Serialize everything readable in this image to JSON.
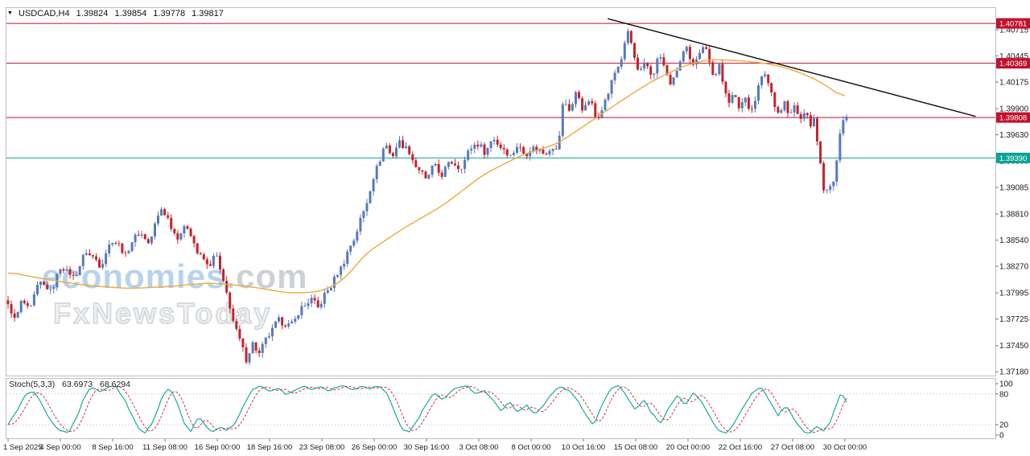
{
  "window": {
    "symbol_info": {
      "symbol": "USDCAD,H4",
      "open": "1.39824",
      "high": "1.39854",
      "low": "1.39778",
      "close": "1.39817"
    }
  },
  "icons": {
    "triangle_marker": "▼"
  },
  "watermark": {
    "brand_blue": "economies",
    "brand_gray": ".com",
    "tagline": "FxNewsToday"
  },
  "colors": {
    "candle_up": "#5579bd",
    "candle_down": "#c2242e",
    "ma": "#efa83a",
    "trend": "#111111",
    "level_red": "#c40f2e",
    "level_teal": "#0aa396",
    "stoch_k": "#18ab9e",
    "stoch_d": "#cc3344",
    "axis_text": "#1a1a1a",
    "border": "#b9bec4"
  },
  "chart_data": {
    "type": "candlestick",
    "symbol": "USDCAD",
    "timeframe": "H4",
    "ylim": [
      1.3714,
      1.4094
    ],
    "price_axis_labels": [
      "1.40715",
      "1.40445",
      "1.40175",
      "1.39900",
      "1.39630",
      "1.39360",
      "1.39085",
      "1.38810",
      "1.38540",
      "1.38270",
      "1.37995",
      "1.37725",
      "1.37450",
      "1.37180"
    ],
    "date_axis_labels": [
      "1 Sep 2025",
      "4 Sep 00:00",
      "8 Sep 16:00",
      "11 Sep 08:00",
      "16 Sep 00:00",
      "18 Sep 16:00",
      "23 Sep 08:00",
      "26 Sep 00:00",
      "30 Sep 16:00",
      "3 Oct 08:00",
      "8 Oct 00:00",
      "10 Oct 16:00",
      "15 Oct 08:00",
      "20 Oct 00:00",
      "22 Oct 16:00",
      "27 Oct 08:00",
      "30 Oct 00:00"
    ],
    "levels": [
      {
        "price": 1.40781,
        "label": "1.40781",
        "color": "#c40f2e"
      },
      {
        "price": 1.40369,
        "label": "1.40369",
        "color": "#c40f2e"
      },
      {
        "price": 1.39808,
        "label": "1.39808",
        "color": "#c40f2e"
      },
      {
        "price": 1.3939,
        "label": "1.39390",
        "color": "#0aa396"
      }
    ],
    "trendline": {
      "points": [
        {
          "x": 0.608,
          "price": 1.4083
        },
        {
          "x": 0.98,
          "price": 1.3982
        }
      ]
    },
    "candles": {
      "count": 258,
      "last_close": 1.39817,
      "close_path": [
        [
          0.0,
          1.3786
        ],
        [
          0.008,
          1.3772
        ],
        [
          0.016,
          1.379
        ],
        [
          0.026,
          1.3782
        ],
        [
          0.038,
          1.3812
        ],
        [
          0.05,
          1.38
        ],
        [
          0.064,
          1.3828
        ],
        [
          0.078,
          1.3815
        ],
        [
          0.094,
          1.3843
        ],
        [
          0.11,
          1.3828
        ],
        [
          0.125,
          1.3856
        ],
        [
          0.14,
          1.3839
        ],
        [
          0.155,
          1.3863
        ],
        [
          0.168,
          1.3851
        ],
        [
          0.183,
          1.3888
        ],
        [
          0.193,
          1.3871
        ],
        [
          0.203,
          1.3856
        ],
        [
          0.213,
          1.3871
        ],
        [
          0.225,
          1.3843
        ],
        [
          0.238,
          1.3827
        ],
        [
          0.248,
          1.3839
        ],
        [
          0.258,
          1.3807
        ],
        [
          0.268,
          1.3773
        ],
        [
          0.276,
          1.375
        ],
        [
          0.284,
          1.3732
        ],
        [
          0.292,
          1.3746
        ],
        [
          0.3,
          1.3737
        ],
        [
          0.312,
          1.3758
        ],
        [
          0.324,
          1.3772
        ],
        [
          0.336,
          1.3764
        ],
        [
          0.348,
          1.3781
        ],
        [
          0.36,
          1.3793
        ],
        [
          0.37,
          1.3785
        ],
        [
          0.382,
          1.3803
        ],
        [
          0.393,
          1.3819
        ],
        [
          0.404,
          1.3839
        ],
        [
          0.414,
          1.3859
        ],
        [
          0.424,
          1.3883
        ],
        [
          0.432,
          1.3907
        ],
        [
          0.441,
          1.3933
        ],
        [
          0.45,
          1.3953
        ],
        [
          0.458,
          1.3941
        ],
        [
          0.468,
          1.3957
        ],
        [
          0.478,
          1.3945
        ],
        [
          0.488,
          1.3929
        ],
        [
          0.498,
          1.3917
        ],
        [
          0.508,
          1.3931
        ],
        [
          0.518,
          1.3921
        ],
        [
          0.528,
          1.3937
        ],
        [
          0.538,
          1.3927
        ],
        [
          0.548,
          1.3943
        ],
        [
          0.558,
          1.3956
        ],
        [
          0.568,
          1.3945
        ],
        [
          0.578,
          1.3959
        ],
        [
          0.588,
          1.3951
        ],
        [
          0.598,
          1.3941
        ],
        [
          0.608,
          1.3951
        ],
        [
          0.618,
          1.3943
        ],
        [
          0.628,
          1.3951
        ],
        [
          0.638,
          1.3943
        ],
        [
          0.648,
          1.3951
        ],
        [
          0.655,
          1.3945
        ],
        [
          0.662,
          1.3997
        ],
        [
          0.67,
          1.3989
        ],
        [
          0.678,
          1.4007
        ],
        [
          0.686,
          1.3989
        ],
        [
          0.694,
          1.3999
        ],
        [
          0.702,
          1.3979
        ],
        [
          0.71,
          1.3993
        ],
        [
          0.718,
          1.4013
        ],
        [
          0.726,
          1.4031
        ],
        [
          0.734,
          1.4049
        ],
        [
          0.74,
          1.4072
        ],
        [
          0.746,
          1.4047
        ],
        [
          0.752,
          1.4023
        ],
        [
          0.76,
          1.4039
        ],
        [
          0.768,
          1.4021
        ],
        [
          0.776,
          1.4047
        ],
        [
          0.784,
          1.4029
        ],
        [
          0.792,
          1.4013
        ],
        [
          0.8,
          1.4037
        ],
        [
          0.808,
          1.4053
        ],
        [
          0.816,
          1.4033
        ],
        [
          0.824,
          1.4047
        ],
        [
          0.83,
          1.4059
        ],
        [
          0.836,
          1.4041
        ],
        [
          0.842,
          1.4021
        ],
        [
          0.848,
          1.4037
        ],
        [
          0.854,
          1.4009
        ],
        [
          0.86,
          1.3995
        ],
        [
          0.866,
          1.4007
        ],
        [
          0.872,
          1.3993
        ],
        [
          0.878,
          1.4001
        ],
        [
          0.884,
          1.3988
        ],
        [
          0.89,
          1.3998
        ],
        [
          0.896,
          1.4014
        ],
        [
          0.902,
          1.403
        ],
        [
          0.908,
          1.4012
        ],
        [
          0.914,
          1.3996
        ],
        [
          0.92,
          1.3984
        ],
        [
          0.926,
          1.3996
        ],
        [
          0.932,
          1.3982
        ],
        [
          0.938,
          1.3992
        ],
        [
          0.944,
          1.3978
        ],
        [
          0.95,
          1.3988
        ],
        [
          0.956,
          1.3972
        ],
        [
          0.961,
          1.398
        ],
        [
          0.966,
          1.3952
        ],
        [
          0.97,
          1.3922
        ],
        [
          0.974,
          1.3898
        ],
        [
          0.978,
          1.3912
        ],
        [
          0.982,
          1.3902
        ],
        [
          0.987,
          1.3932
        ],
        [
          0.992,
          1.3964
        ],
        [
          0.996,
          1.3976
        ],
        [
          1.0,
          1.3982
        ]
      ]
    },
    "ma_line": {
      "points": [
        [
          0.0,
          1.3821
        ],
        [
          0.048,
          1.3813
        ],
        [
          0.096,
          1.3807
        ],
        [
          0.144,
          1.3804
        ],
        [
          0.192,
          1.3806
        ],
        [
          0.24,
          1.381
        ],
        [
          0.288,
          1.3806
        ],
        [
          0.337,
          1.3799
        ],
        [
          0.375,
          1.3801
        ],
        [
          0.404,
          1.3815
        ],
        [
          0.423,
          1.3838
        ],
        [
          0.471,
          1.3866
        ],
        [
          0.519,
          1.389
        ],
        [
          0.567,
          1.3922
        ],
        [
          0.615,
          1.3943
        ],
        [
          0.654,
          1.3953
        ],
        [
          0.692,
          1.3975
        ],
        [
          0.731,
          1.3998
        ],
        [
          0.769,
          1.4019
        ],
        [
          0.808,
          1.4035
        ],
        [
          0.837,
          1.4041
        ],
        [
          0.865,
          1.404
        ],
        [
          0.904,
          1.4037
        ],
        [
          0.933,
          1.4031
        ],
        [
          0.962,
          1.4021
        ],
        [
          0.981,
          1.4011
        ],
        [
          1.0,
          1.3998
        ]
      ]
    },
    "stochastic": {
      "label": "Stoch(5,3,3)",
      "k_value": "63.6973",
      "d_value": "68.6294",
      "ylim": [
        0,
        100
      ],
      "scale_labels": [
        "100",
        "80",
        "20",
        "0"
      ],
      "levels": [
        20,
        80
      ],
      "k_path": [
        [
          0.0,
          20
        ],
        [
          0.01,
          45
        ],
        [
          0.02,
          75
        ],
        [
          0.03,
          88
        ],
        [
          0.04,
          60
        ],
        [
          0.052,
          25
        ],
        [
          0.062,
          8
        ],
        [
          0.072,
          4
        ],
        [
          0.082,
          35
        ],
        [
          0.092,
          78
        ],
        [
          0.1,
          94
        ],
        [
          0.11,
          84
        ],
        [
          0.118,
          92
        ],
        [
          0.128,
          96
        ],
        [
          0.138,
          72
        ],
        [
          0.148,
          38
        ],
        [
          0.156,
          12
        ],
        [
          0.164,
          4
        ],
        [
          0.174,
          30
        ],
        [
          0.184,
          76
        ],
        [
          0.192,
          92
        ],
        [
          0.202,
          62
        ],
        [
          0.21,
          22
        ],
        [
          0.218,
          8
        ],
        [
          0.228,
          36
        ],
        [
          0.236,
          18
        ],
        [
          0.244,
          6
        ],
        [
          0.254,
          16
        ],
        [
          0.262,
          9
        ],
        [
          0.272,
          26
        ],
        [
          0.282,
          62
        ],
        [
          0.292,
          90
        ],
        [
          0.302,
          96
        ],
        [
          0.312,
          84
        ],
        [
          0.322,
          93
        ],
        [
          0.332,
          78
        ],
        [
          0.342,
          88
        ],
        [
          0.352,
          96
        ],
        [
          0.362,
          88
        ],
        [
          0.372,
          95
        ],
        [
          0.382,
          86
        ],
        [
          0.392,
          93
        ],
        [
          0.402,
          96
        ],
        [
          0.412,
          88
        ],
        [
          0.422,
          95
        ],
        [
          0.432,
          90
        ],
        [
          0.442,
          96
        ],
        [
          0.452,
          80
        ],
        [
          0.462,
          40
        ],
        [
          0.47,
          12
        ],
        [
          0.478,
          5
        ],
        [
          0.488,
          28
        ],
        [
          0.498,
          58
        ],
        [
          0.508,
          82
        ],
        [
          0.518,
          68
        ],
        [
          0.528,
          86
        ],
        [
          0.538,
          94
        ],
        [
          0.548,
          96
        ],
        [
          0.558,
          78
        ],
        [
          0.568,
          88
        ],
        [
          0.578,
          68
        ],
        [
          0.588,
          48
        ],
        [
          0.598,
          64
        ],
        [
          0.608,
          44
        ],
        [
          0.618,
          60
        ],
        [
          0.628,
          40
        ],
        [
          0.638,
          56
        ],
        [
          0.648,
          80
        ],
        [
          0.658,
          94
        ],
        [
          0.668,
          88
        ],
        [
          0.678,
          70
        ],
        [
          0.688,
          44
        ],
        [
          0.698,
          18
        ],
        [
          0.708,
          58
        ],
        [
          0.718,
          90
        ],
        [
          0.728,
          96
        ],
        [
          0.738,
          76
        ],
        [
          0.748,
          48
        ],
        [
          0.758,
          68
        ],
        [
          0.768,
          42
        ],
        [
          0.778,
          22
        ],
        [
          0.788,
          52
        ],
        [
          0.798,
          78
        ],
        [
          0.808,
          58
        ],
        [
          0.818,
          84
        ],
        [
          0.828,
          62
        ],
        [
          0.838,
          32
        ],
        [
          0.848,
          8
        ],
        [
          0.858,
          4
        ],
        [
          0.868,
          28
        ],
        [
          0.878,
          58
        ],
        [
          0.888,
          84
        ],
        [
          0.898,
          94
        ],
        [
          0.908,
          68
        ],
        [
          0.918,
          38
        ],
        [
          0.928,
          58
        ],
        [
          0.938,
          28
        ],
        [
          0.948,
          8
        ],
        [
          0.956,
          4
        ],
        [
          0.964,
          18
        ],
        [
          0.972,
          6
        ],
        [
          0.98,
          24
        ],
        [
          0.988,
          58
        ],
        [
          0.994,
          84
        ],
        [
          1.0,
          64
        ]
      ]
    }
  }
}
